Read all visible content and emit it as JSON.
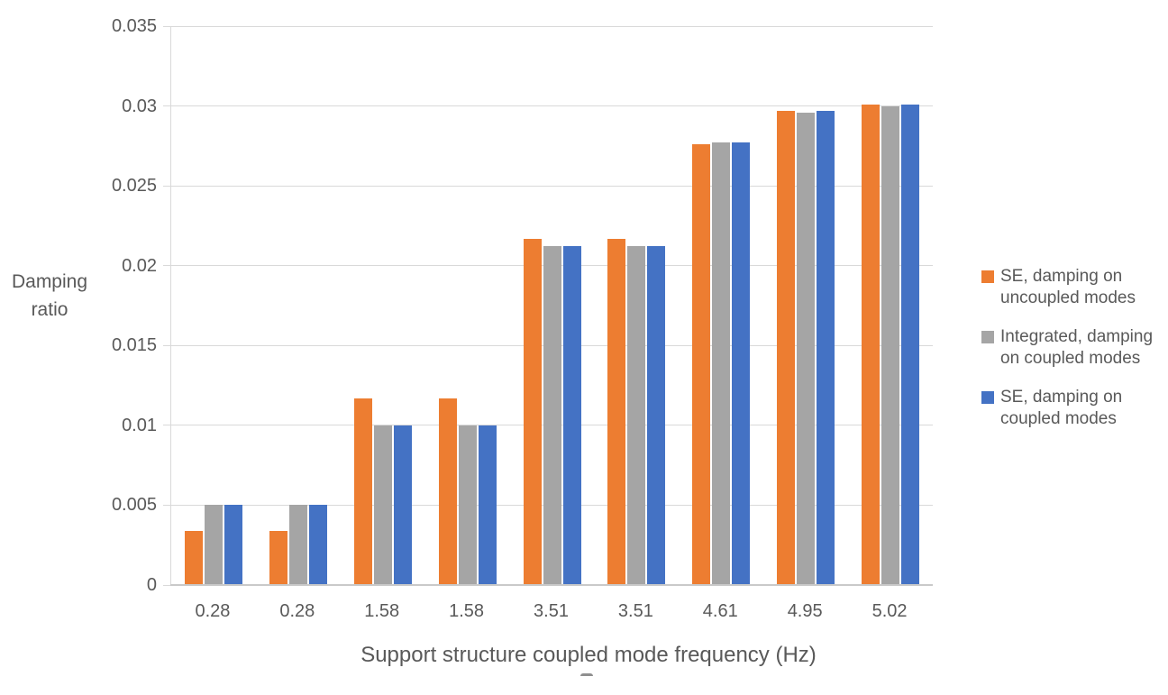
{
  "chart_data": {
    "type": "bar",
    "title": "",
    "categories": [
      "0.28",
      "0.28",
      "1.58",
      "1.58",
      "3.51",
      "3.51",
      "4.61",
      "4.95",
      "5.02"
    ],
    "series": [
      {
        "name": "SE, damping on uncoupled modes",
        "label_lines": [
          "SE, damping on",
          "uncoupled modes"
        ],
        "color": "#ED7D31",
        "values": [
          0.0034,
          0.0034,
          0.0117,
          0.0117,
          0.0217,
          0.0217,
          0.0276,
          0.0297,
          0.0301
        ]
      },
      {
        "name": "Integrated, damping on coupled modes",
        "label_lines": [
          "Integrated, damping",
          "on coupled modes"
        ],
        "color": "#A5A5A5",
        "values": [
          0.005,
          0.005,
          0.01,
          0.01,
          0.0212,
          0.0212,
          0.0277,
          0.0296,
          0.03
        ]
      },
      {
        "name": "SE, damping on coupled modes",
        "label_lines": [
          "SE, damping on",
          "coupled modes"
        ],
        "color": "#4472C4",
        "values": [
          0.005,
          0.005,
          0.01,
          0.01,
          0.0212,
          0.0212,
          0.0277,
          0.0297,
          0.0301
        ]
      }
    ],
    "xlabel": "Support structure coupled mode frequency (Hz)",
    "ylabel_lines": [
      "Damping",
      "ratio"
    ],
    "ylim": [
      0,
      0.035
    ],
    "yticks": [
      "0",
      "0.005",
      "0.01",
      "0.015",
      "0.02",
      "0.025",
      "0.03",
      "0.035"
    ],
    "grid": true,
    "legend_position": "right",
    "colors": {
      "gridline": "#D9D9D9",
      "axis_line": "#C9C9C9",
      "text": "#595959"
    }
  }
}
